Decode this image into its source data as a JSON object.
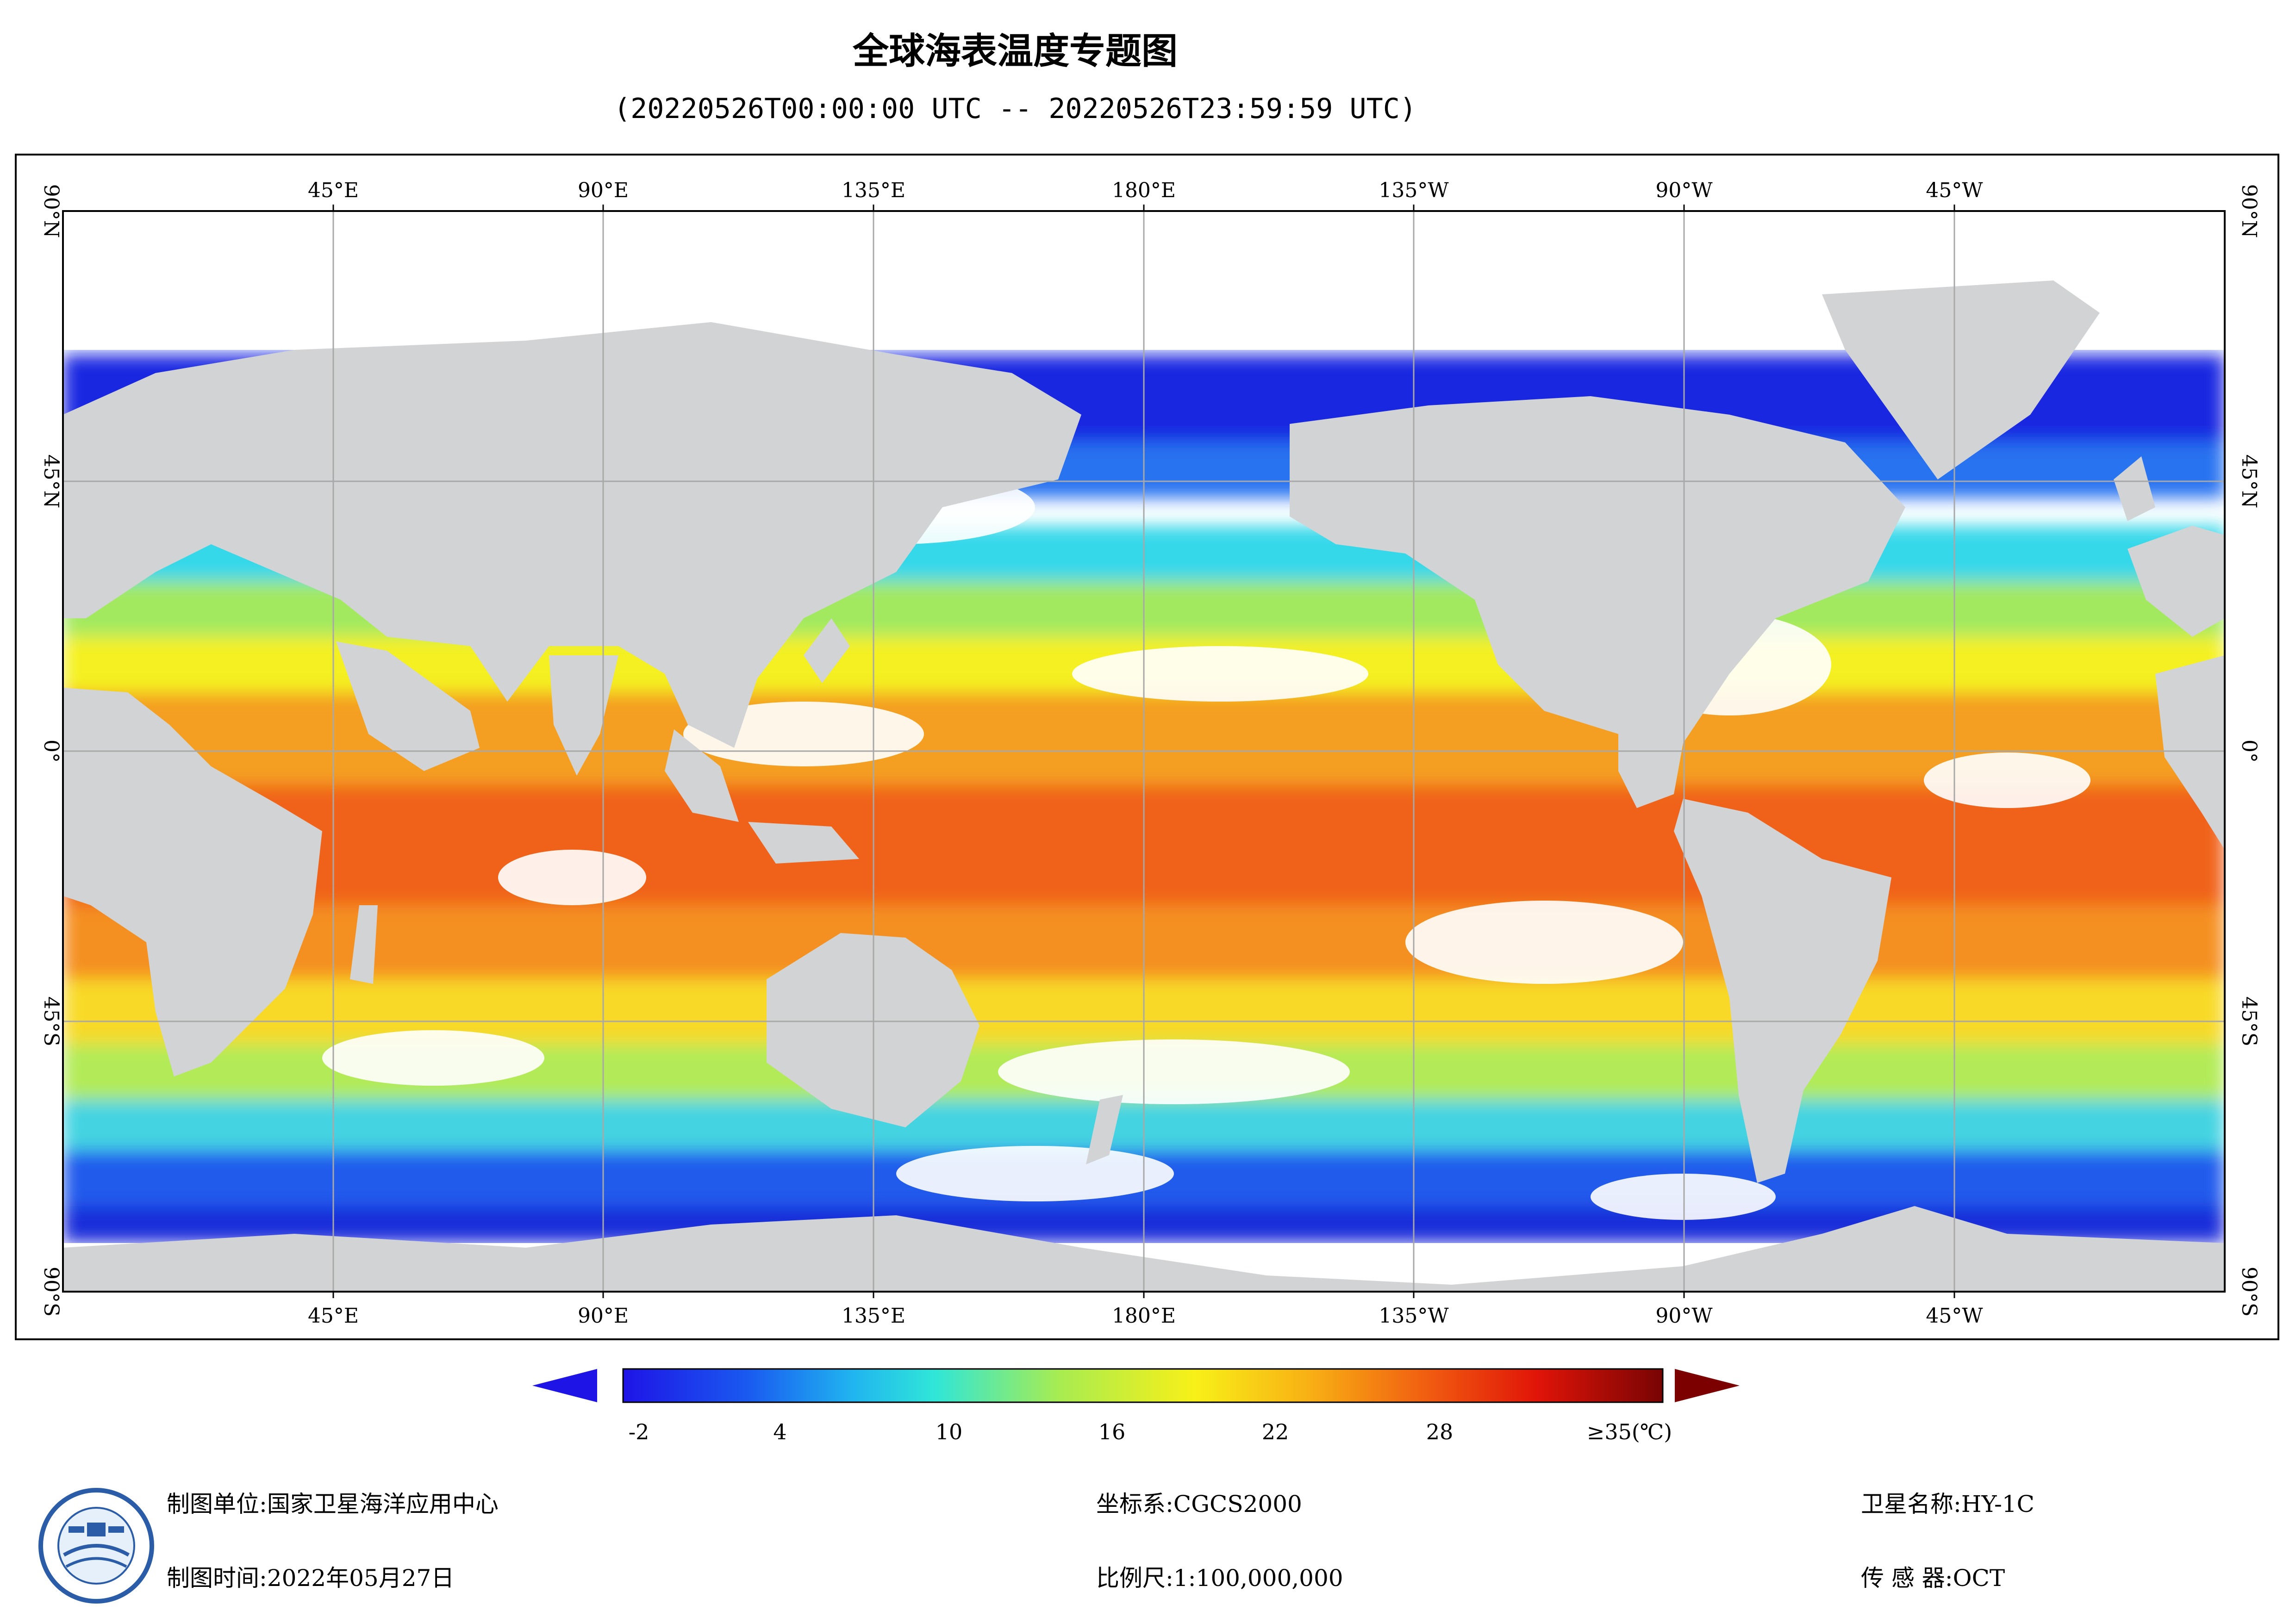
{
  "title": "全球海表温度专题图",
  "subtitle": "(20220526T00:00:00 UTC -- 20220526T23:59:59 UTC)",
  "map": {
    "top_lon_labels": [
      "45°E",
      "90°E",
      "135°E",
      "180°E",
      "135°W",
      "90°W",
      "45°W"
    ],
    "bottom_lon_labels": [
      "45°E",
      "90°E",
      "135°E",
      "180°E",
      "135°W",
      "90°W",
      "45°W"
    ],
    "left_lat_labels": [
      "90°N",
      "45°N",
      "0°",
      "45°S",
      "90°S"
    ],
    "right_lat_labels": [
      "90°N",
      "45°N",
      "0°",
      "45°S",
      "90°S"
    ],
    "land_color": "#d2d3d5",
    "cloud_color": "#ffffff"
  },
  "colorbar": {
    "tick_labels": [
      "-2",
      "4",
      "10",
      "16",
      "22",
      "28",
      "≥35(℃)"
    ],
    "low_arrow_color": "#1e14e6",
    "high_arrow_color": "#7d0000"
  },
  "footer": {
    "org_label": "制图单位:",
    "org_value": "国家卫星海洋应用中心",
    "time_label": "制图时间:",
    "time_value": "2022年05月27日",
    "crs_label": "坐标系:",
    "crs_value": "CGCS2000",
    "scale_label": "比例尺:",
    "scale_value": "1:100,000,000",
    "satellite_label": "卫星名称:",
    "satellite_value": "HY-1C",
    "sensor_label": "传 感 器:",
    "sensor_value": "OCT"
  },
  "logo_icon": "nsoas-logo-icon"
}
